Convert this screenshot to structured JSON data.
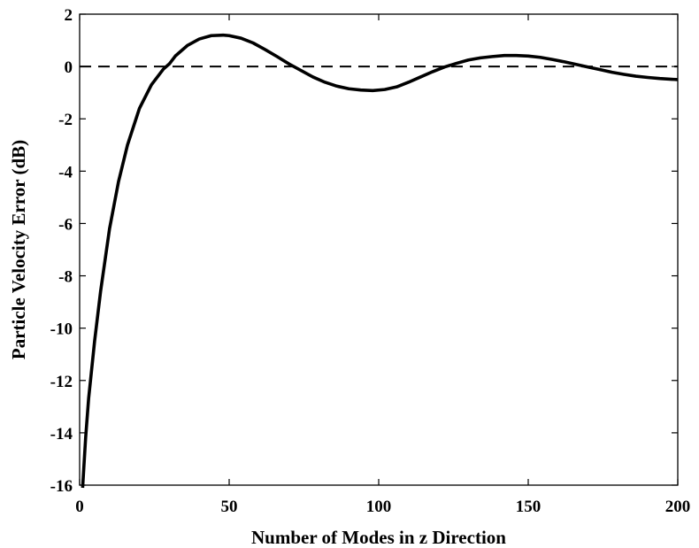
{
  "chart_data": {
    "type": "line",
    "title": "",
    "xlabel": "Number of Modes in z Direction",
    "ylabel": "Particle Velocity Error (dB)",
    "xlim": [
      0,
      200
    ],
    "ylim": [
      -16,
      2
    ],
    "xticks": [
      0,
      50,
      100,
      150,
      200
    ],
    "xtick_labels": [
      "0",
      "50",
      "100",
      "150",
      "200"
    ],
    "yticks": [
      -16,
      -14,
      -12,
      -10,
      -8,
      -6,
      -4,
      -2,
      0,
      2
    ],
    "ytick_labels": [
      "-16",
      "-14",
      "-12",
      "-10",
      "-8",
      "-6",
      "-4",
      "-2",
      "0",
      "2"
    ],
    "grid": false,
    "series": [
      {
        "style": "solid",
        "color": "#000000",
        "x": [
          1,
          2,
          3,
          5,
          7,
          10,
          13,
          16,
          20,
          24,
          28,
          30,
          32,
          36,
          40,
          44,
          48,
          50,
          54,
          58,
          62,
          66,
          70,
          74,
          78,
          82,
          86,
          90,
          94,
          98,
          102,
          106,
          110,
          114,
          118,
          122,
          126,
          130,
          134,
          138,
          142,
          146,
          150,
          154,
          158,
          162,
          166,
          170,
          174,
          178,
          182,
          186,
          190,
          194,
          198,
          200
        ],
        "y": [
          -16.1,
          -14.2,
          -12.7,
          -10.5,
          -8.6,
          -6.2,
          -4.4,
          -3.0,
          -1.6,
          -0.7,
          -0.1,
          0.1,
          0.4,
          0.8,
          1.05,
          1.18,
          1.2,
          1.18,
          1.08,
          0.9,
          0.65,
          0.38,
          0.1,
          -0.15,
          -0.4,
          -0.6,
          -0.75,
          -0.85,
          -0.9,
          -0.92,
          -0.88,
          -0.78,
          -0.6,
          -0.4,
          -0.2,
          -0.02,
          0.12,
          0.25,
          0.33,
          0.38,
          0.42,
          0.42,
          0.4,
          0.35,
          0.27,
          0.18,
          0.08,
          -0.02,
          -0.12,
          -0.22,
          -0.3,
          -0.37,
          -0.42,
          -0.46,
          -0.49,
          -0.5
        ]
      },
      {
        "style": "dashed",
        "color": "#000000",
        "x": [
          0,
          200
        ],
        "y": [
          0,
          0
        ]
      }
    ]
  }
}
